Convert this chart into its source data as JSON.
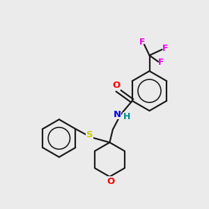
{
  "background_color": "#ebebeb",
  "bond_color": "#1a1a1a",
  "atom_colors": {
    "O": "#ff0000",
    "N": "#0000ee",
    "H": "#008b8b",
    "S": "#cccc00",
    "F": "#ee00ee"
  },
  "figsize": [
    3.0,
    3.0
  ],
  "dpi": 100,
  "xlim": [
    0,
    10
  ],
  "ylim": [
    0,
    10
  ]
}
